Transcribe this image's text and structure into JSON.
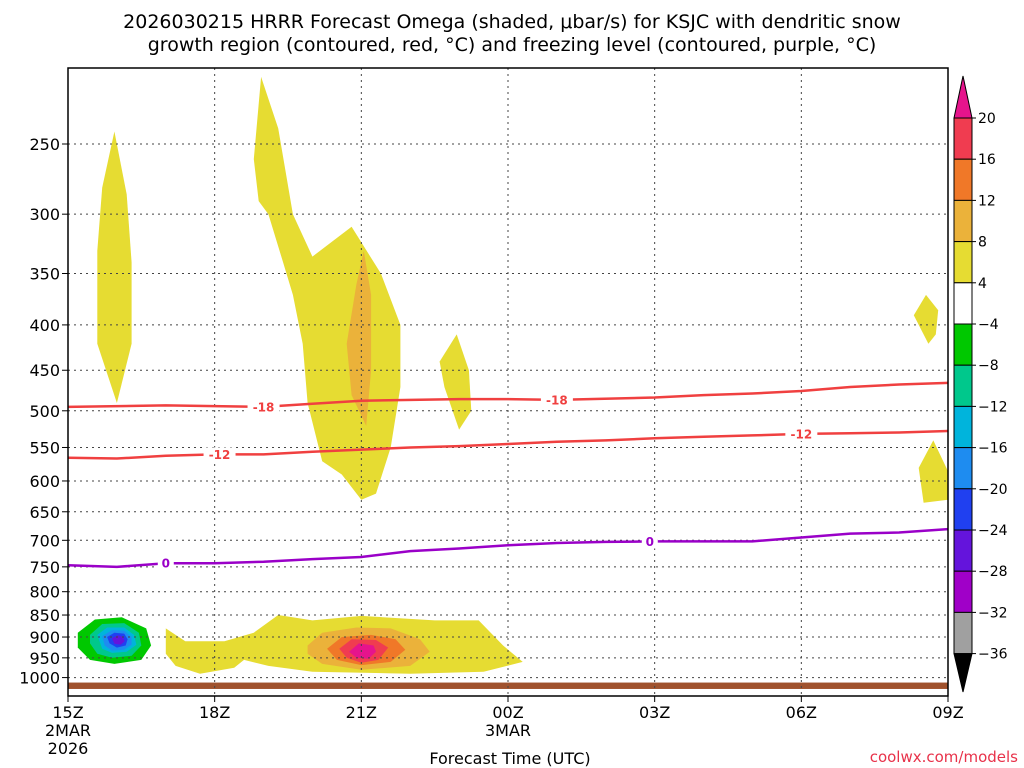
{
  "chart_data": {
    "type": "contour",
    "title_line1": "2026030215 HRRR Forecast Omega (shaded, μbar/s) for KSJC with dendritic snow",
    "title_line2": "growth region (contoured, red, °C) and freezing level (contoured, purple, °C)",
    "xlabel": "Forecast Time (UTC)",
    "ylabel": "",
    "credit": "coolwx.com/models",
    "x_ticks": [
      {
        "hour": 0,
        "label": "15Z",
        "sub1": "2MAR",
        "sub2": "2026"
      },
      {
        "hour": 3,
        "label": "18Z"
      },
      {
        "hour": 6,
        "label": "21Z"
      },
      {
        "hour": 9,
        "label": "00Z",
        "sub1": "3MAR"
      },
      {
        "hour": 12,
        "label": "03Z"
      },
      {
        "hour": 15,
        "label": "06Z"
      },
      {
        "hour": 18,
        "label": "09Z"
      }
    ],
    "xlim": [
      0,
      18
    ],
    "ylim": [
      1000,
      200
    ],
    "y_axis": "pressure (hPa), log scale, inverted",
    "y_ticks": [
      250,
      300,
      350,
      400,
      450,
      500,
      550,
      600,
      650,
      700,
      750,
      800,
      850,
      900,
      950,
      1000
    ],
    "grid": true,
    "colorbar": {
      "units": "μbar/s",
      "labels": [
        "20",
        "16",
        "12",
        "8",
        "4",
        "−4",
        "−8",
        "−12",
        "−16",
        "−20",
        "−24",
        "−28",
        "−32",
        "−36"
      ],
      "bins": [
        {
          "lo": 16,
          "hi": 20,
          "color": "#f03c50"
        },
        {
          "lo": 12,
          "hi": 16,
          "color": "#f07828"
        },
        {
          "lo": 8,
          "hi": 12,
          "color": "#ebb23a"
        },
        {
          "lo": 4,
          "hi": 8,
          "color": "#e6dc32"
        },
        {
          "lo": -4,
          "hi": 4,
          "color": "#ffffff"
        },
        {
          "lo": -8,
          "hi": -4,
          "color": "#00c800"
        },
        {
          "lo": -12,
          "hi": -8,
          "color": "#00c88c"
        },
        {
          "lo": -16,
          "hi": -12,
          "color": "#00b4dc"
        },
        {
          "lo": -20,
          "hi": -16,
          "color": "#1e8cf0"
        },
        {
          "lo": -24,
          "hi": -20,
          "color": "#2040f0"
        },
        {
          "lo": -28,
          "hi": -24,
          "color": "#6414dc"
        },
        {
          "lo": -32,
          "hi": -28,
          "color": "#a000c8"
        },
        {
          "lo": -36,
          "hi": -32,
          "color": "#a0a0a0"
        }
      ],
      "over_color": "#e6148c",
      "under_color": "#000000"
    },
    "shaded_regions": [
      {
        "name": "upper-yellow-plume-15z",
        "level": 4,
        "color": "#e6dc32",
        "points": [
          [
            1.0,
            490
          ],
          [
            0.6,
            420
          ],
          [
            0.6,
            330
          ],
          [
            0.7,
            280
          ],
          [
            0.95,
            242
          ],
          [
            1.2,
            285
          ],
          [
            1.3,
            340
          ],
          [
            1.3,
            420
          ]
        ]
      },
      {
        "name": "upper-yellow-plume-19z",
        "level": 4,
        "color": "#e6dc32",
        "points": [
          [
            3.8,
            260
          ],
          [
            3.95,
            210
          ],
          [
            4.3,
            240
          ],
          [
            4.6,
            300
          ],
          [
            5.0,
            335
          ],
          [
            5.8,
            310
          ],
          [
            6.4,
            350
          ],
          [
            6.8,
            400
          ],
          [
            6.8,
            470
          ],
          [
            6.6,
            550
          ],
          [
            6.3,
            620
          ],
          [
            6.0,
            630
          ],
          [
            5.6,
            590
          ],
          [
            5.2,
            570
          ],
          [
            4.9,
            490
          ],
          [
            4.8,
            420
          ],
          [
            4.6,
            370
          ],
          [
            4.4,
            340
          ],
          [
            4.1,
            300
          ],
          [
            3.9,
            290
          ]
        ]
      },
      {
        "name": "orange-core-21z",
        "level": 8,
        "color": "#ebb23a",
        "points": [
          [
            5.9,
            360
          ],
          [
            6.05,
            330
          ],
          [
            6.2,
            370
          ],
          [
            6.2,
            450
          ],
          [
            6.1,
            520
          ],
          [
            5.8,
            480
          ],
          [
            5.7,
            420
          ]
        ]
      },
      {
        "name": "yellow-patch-2330z",
        "level": 4,
        "color": "#e6dc32",
        "points": [
          [
            8.0,
            525
          ],
          [
            7.7,
            470
          ],
          [
            7.6,
            440
          ],
          [
            7.95,
            410
          ],
          [
            8.2,
            450
          ],
          [
            8.25,
            500
          ]
        ]
      },
      {
        "name": "yellow-patch-0730z-upper",
        "level": 4,
        "color": "#e6dc32",
        "points": [
          [
            17.6,
            420
          ],
          [
            17.3,
            390
          ],
          [
            17.55,
            370
          ],
          [
            17.8,
            385
          ],
          [
            17.75,
            410
          ]
        ]
      },
      {
        "name": "yellow-patch-0830z-mid",
        "level": 4,
        "color": "#e6dc32",
        "points": [
          [
            17.5,
            635
          ],
          [
            17.4,
            580
          ],
          [
            17.7,
            540
          ],
          [
            18.0,
            585
          ],
          [
            18.0,
            630
          ]
        ]
      },
      {
        "name": "lower-yellow-band",
        "level": 4,
        "color": "#e6dc32",
        "points": [
          [
            2.0,
            940
          ],
          [
            2.0,
            880
          ],
          [
            2.4,
            910
          ],
          [
            3.2,
            910
          ],
          [
            3.8,
            890
          ],
          [
            4.3,
            850
          ],
          [
            5.0,
            862
          ],
          [
            6.0,
            852
          ],
          [
            7.5,
            862
          ],
          [
            8.4,
            862
          ],
          [
            8.9,
            920
          ],
          [
            9.3,
            960
          ],
          [
            8.5,
            985
          ],
          [
            7.0,
            990
          ],
          [
            5.0,
            985
          ],
          [
            4.1,
            970
          ],
          [
            3.6,
            955
          ],
          [
            3.4,
            975
          ],
          [
            2.7,
            990
          ],
          [
            2.2,
            970
          ]
        ]
      },
      {
        "name": "lower-orange-core",
        "level": 8,
        "color": "#ebb23a",
        "points": [
          [
            4.9,
            920
          ],
          [
            5.2,
            890
          ],
          [
            5.9,
            878
          ],
          [
            6.6,
            880
          ],
          [
            7.2,
            905
          ],
          [
            7.4,
            935
          ],
          [
            7.0,
            970
          ],
          [
            6.0,
            980
          ],
          [
            5.2,
            965
          ],
          [
            4.9,
            940
          ]
        ]
      },
      {
        "name": "lower-deep-orange-core",
        "level": 12,
        "color": "#f07828",
        "points": [
          [
            5.3,
            928
          ],
          [
            5.6,
            900
          ],
          [
            6.2,
            895
          ],
          [
            6.7,
            905
          ],
          [
            6.9,
            930
          ],
          [
            6.6,
            960
          ],
          [
            6.0,
            968
          ],
          [
            5.5,
            955
          ]
        ]
      },
      {
        "name": "lower-red-core",
        "level": 16,
        "color": "#f03c50",
        "points": [
          [
            5.55,
            928
          ],
          [
            5.8,
            905
          ],
          [
            6.3,
            907
          ],
          [
            6.55,
            925
          ],
          [
            6.35,
            955
          ],
          [
            6.0,
            962
          ],
          [
            5.7,
            950
          ]
        ]
      },
      {
        "name": "lower-magenta-core",
        "level": 20,
        "color": "#e6148c",
        "points": [
          [
            5.75,
            935
          ],
          [
            5.95,
            915
          ],
          [
            6.25,
            920
          ],
          [
            6.3,
            935
          ],
          [
            6.15,
            952
          ],
          [
            5.9,
            950
          ]
        ]
      },
      {
        "name": "neg-green-outer",
        "level": -4,
        "color": "#00c800",
        "points": [
          [
            0.2,
            890
          ],
          [
            0.55,
            860
          ],
          [
            1.1,
            855
          ],
          [
            1.6,
            880
          ],
          [
            1.7,
            920
          ],
          [
            1.5,
            955
          ],
          [
            0.95,
            965
          ],
          [
            0.45,
            955
          ],
          [
            0.2,
            925
          ]
        ]
      },
      {
        "name": "neg-teal",
        "level": -8,
        "color": "#00c88c",
        "points": [
          [
            0.45,
            895
          ],
          [
            0.7,
            870
          ],
          [
            1.15,
            868
          ],
          [
            1.45,
            890
          ],
          [
            1.5,
            920
          ],
          [
            1.3,
            945
          ],
          [
            0.9,
            950
          ],
          [
            0.6,
            940
          ],
          [
            0.45,
            915
          ]
        ]
      },
      {
        "name": "neg-cyan",
        "level": -12,
        "color": "#00b4dc",
        "points": [
          [
            0.6,
            895
          ],
          [
            0.8,
            878
          ],
          [
            1.15,
            878
          ],
          [
            1.35,
            895
          ],
          [
            1.4,
            918
          ],
          [
            1.2,
            935
          ],
          [
            0.9,
            938
          ],
          [
            0.7,
            928
          ]
        ]
      },
      {
        "name": "neg-light-blue",
        "level": -16,
        "color": "#1e8cf0",
        "points": [
          [
            0.7,
            898
          ],
          [
            0.9,
            884
          ],
          [
            1.15,
            885
          ],
          [
            1.3,
            900
          ],
          [
            1.3,
            918
          ],
          [
            1.15,
            930
          ],
          [
            0.9,
            932
          ],
          [
            0.75,
            920
          ]
        ]
      },
      {
        "name": "neg-blue",
        "level": -20,
        "color": "#2040f0",
        "points": [
          [
            0.8,
            900
          ],
          [
            0.95,
            890
          ],
          [
            1.15,
            892
          ],
          [
            1.22,
            905
          ],
          [
            1.18,
            920
          ],
          [
            1.0,
            925
          ],
          [
            0.85,
            915
          ]
        ]
      },
      {
        "name": "neg-indigo",
        "level": -24,
        "color": "#6414dc",
        "points": [
          [
            0.9,
            903
          ],
          [
            1.02,
            896
          ],
          [
            1.13,
            900
          ],
          [
            1.16,
            910
          ],
          [
            1.08,
            918
          ],
          [
            0.95,
            916
          ]
        ]
      }
    ],
    "contours": [
      {
        "label": "-18",
        "color": "#f04040",
        "label_hours": [
          4.0,
          10.0
        ],
        "points": [
          [
            0,
            495
          ],
          [
            2,
            493
          ],
          [
            4,
            495
          ],
          [
            5,
            491
          ],
          [
            6,
            487
          ],
          [
            8,
            485
          ],
          [
            9,
            485
          ],
          [
            10,
            486
          ],
          [
            12,
            483
          ],
          [
            13,
            480
          ],
          [
            14,
            478
          ],
          [
            15,
            475
          ],
          [
            16,
            470
          ],
          [
            17,
            467
          ],
          [
            18,
            465
          ]
        ]
      },
      {
        "label": "-12",
        "color": "#f04040",
        "label_hours": [
          3.1,
          15.0
        ],
        "points": [
          [
            0,
            565
          ],
          [
            1,
            566
          ],
          [
            2,
            562
          ],
          [
            3,
            560
          ],
          [
            4,
            560
          ],
          [
            5,
            556
          ],
          [
            6,
            553
          ],
          [
            7,
            550
          ],
          [
            8,
            548
          ],
          [
            9,
            545
          ],
          [
            10,
            542
          ],
          [
            11,
            540
          ],
          [
            12,
            537
          ],
          [
            13,
            535
          ],
          [
            14,
            533
          ],
          [
            15,
            531
          ],
          [
            16,
            530
          ],
          [
            17,
            529
          ],
          [
            18,
            527
          ]
        ]
      },
      {
        "label": "0",
        "color": "#9a00c8",
        "label_hours": [
          2.0,
          11.9
        ],
        "points": [
          [
            0,
            747
          ],
          [
            1,
            750
          ],
          [
            2,
            743
          ],
          [
            3,
            743
          ],
          [
            4,
            740
          ],
          [
            5,
            735
          ],
          [
            6,
            731
          ],
          [
            7,
            720
          ],
          [
            8,
            715
          ],
          [
            9,
            709
          ],
          [
            10,
            705
          ],
          [
            11,
            703
          ],
          [
            12,
            702
          ],
          [
            13,
            702
          ],
          [
            14,
            702
          ],
          [
            15,
            695
          ],
          [
            16,
            688
          ],
          [
            17,
            686
          ],
          [
            18,
            680
          ]
        ]
      }
    ],
    "terrain_band": {
      "from_hPa": 1013,
      "to_hPa": 1030,
      "color": "#a0522d"
    }
  }
}
